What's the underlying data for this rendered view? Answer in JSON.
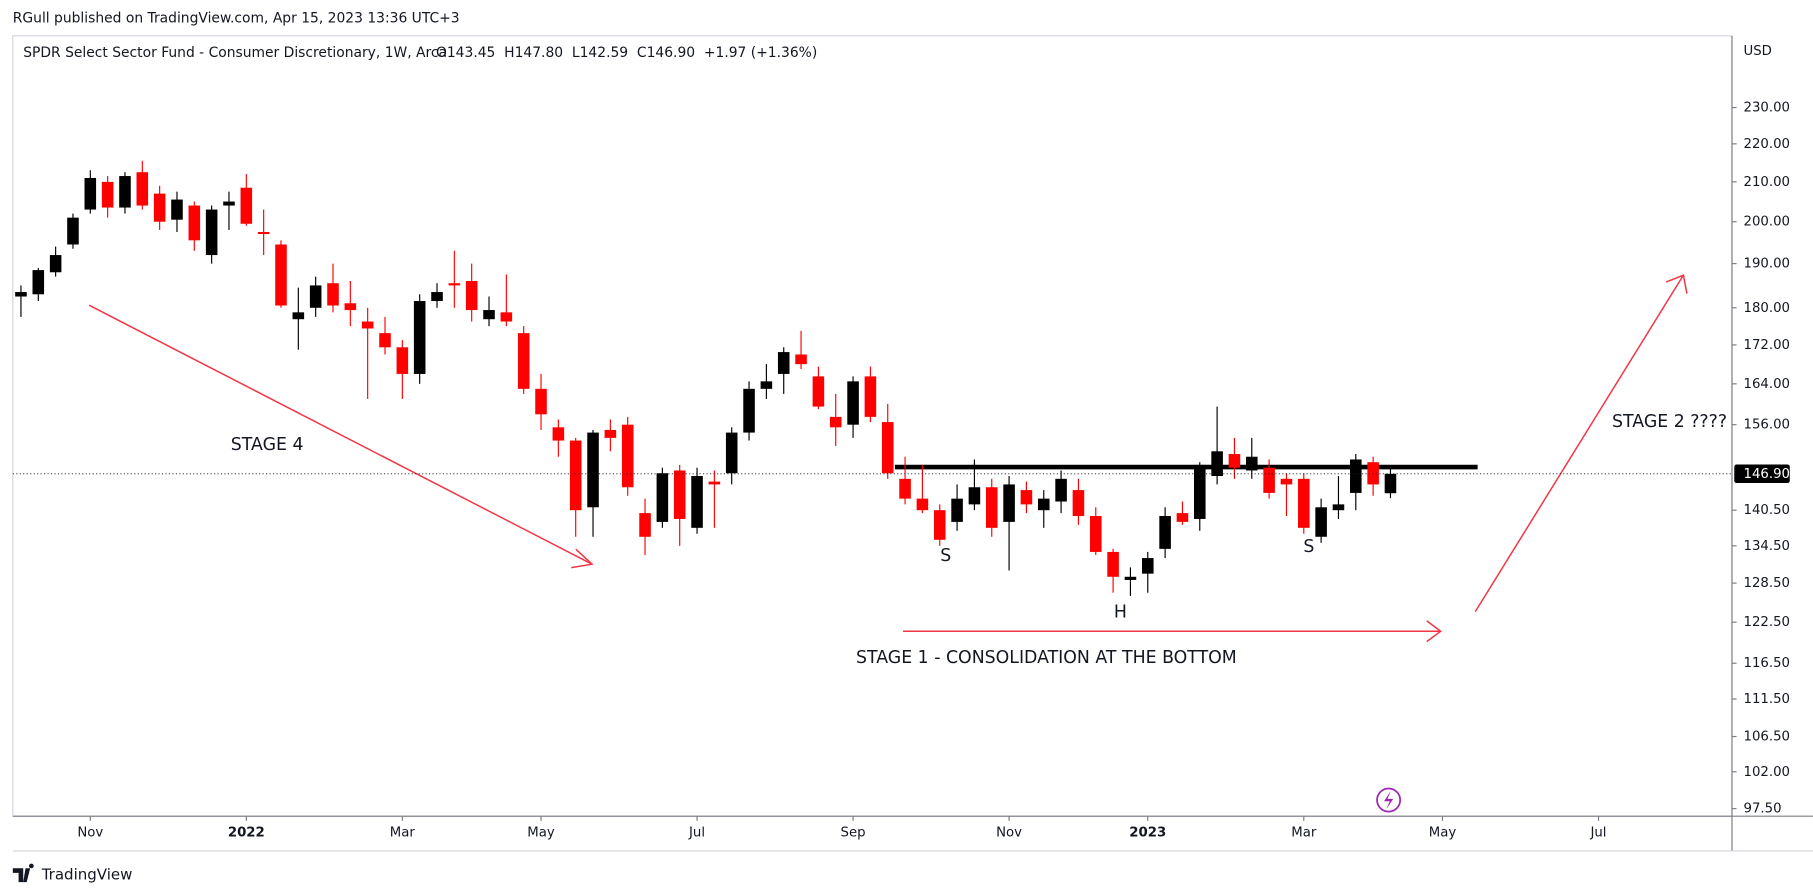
{
  "chart_data": {
    "type": "candlestick",
    "published": "RGull published on TradingView.com, Apr 15, 2023 13:36 UTC+3",
    "title": "SPDR Select Sector Fund - Consumer Discretionary, 1W, Arca",
    "ohlc_text": "O143.45  H147.80  L142.59  C146.90  +1.97 (+1.36%)",
    "currency": "USD",
    "brand": "TradingView",
    "annotations": [
      "STAGE 4",
      "STAGE 1 - CONSOLIDATION AT THE BOTTOM",
      "S",
      "H",
      "S",
      "STAGE 2 ????"
    ],
    "up_color": "#000000",
    "down_color": "#ff0000",
    "log_scale": true,
    "grid": false,
    "xlim": [
      -0.47,
      98.7
    ],
    "xticks": [
      {
        "value": 4,
        "label": "Nov"
      },
      {
        "value": 13,
        "label": "2022"
      },
      {
        "value": 22,
        "label": "Mar"
      },
      {
        "value": 30,
        "label": "May"
      },
      {
        "value": 39,
        "label": "Jul"
      },
      {
        "value": 48,
        "label": "Sep"
      },
      {
        "value": 57,
        "label": "Nov"
      },
      {
        "value": 65,
        "label": "2023"
      },
      {
        "value": 74,
        "label": "Mar"
      },
      {
        "value": 82,
        "label": "May"
      },
      {
        "value": 91,
        "label": "Jul"
      }
    ],
    "ylim": [
      96.6,
      251.1
    ],
    "yticks": [
      {
        "value": 97.5,
        "label": "97.50"
      },
      {
        "value": 102,
        "label": "102.00"
      },
      {
        "value": 106.5,
        "label": "106.50"
      },
      {
        "value": 111.5,
        "label": "111.50"
      },
      {
        "value": 116.5,
        "label": "116.50"
      },
      {
        "value": 122.5,
        "label": "122.50"
      },
      {
        "value": 128.5,
        "label": "128.50"
      },
      {
        "value": 134.5,
        "label": "134.50"
      },
      {
        "value": 140.5,
        "label": "140.50"
      },
      {
        "value": 156,
        "label": "156.00"
      },
      {
        "value": 164,
        "label": "164.00"
      },
      {
        "value": 172,
        "label": "172.00"
      },
      {
        "value": 180,
        "label": "180.00"
      },
      {
        "value": 190,
        "label": "190.00"
      },
      {
        "value": 200,
        "label": "200.00"
      },
      {
        "value": 210,
        "label": "210.00"
      },
      {
        "value": 220,
        "label": "220.00"
      },
      {
        "value": 230,
        "label": "230.00"
      }
    ],
    "last_price": {
      "value": 146.9,
      "label": "146.90"
    },
    "open": [
      182.5,
      183,
      188,
      194.5,
      203,
      210,
      203.5,
      212.5,
      207,
      200.5,
      204,
      192,
      204,
      208.5,
      197.5,
      194.5,
      177.5,
      180,
      185.5,
      181,
      177,
      174.5,
      171.5,
      166,
      181.5,
      185.5,
      186,
      177.5,
      179,
      174.5,
      163,
      155.5,
      153,
      141,
      155,
      156,
      140,
      138.5,
      147.5,
      137.5,
      145.5,
      147,
      154.5,
      163,
      166,
      170,
      165.5,
      157.5,
      156,
      165.5,
      156.5,
      146,
      142.5,
      140.5,
      138.5,
      141.5,
      144.5,
      138.5,
      144,
      140.5,
      142,
      144,
      139.5,
      133.5,
      129,
      130,
      134,
      140,
      139,
      146.5,
      150.5,
      147.5,
      148,
      146,
      146,
      136,
      140.5,
      143.5,
      149,
      143.45
    ],
    "high": [
      185,
      189,
      194,
      202,
      213,
      211.5,
      212.5,
      215.5,
      209,
      207.5,
      205,
      204,
      207.5,
      212,
      203,
      195.5,
      184.5,
      187,
      190,
      186,
      180,
      178,
      173,
      183,
      185.5,
      193,
      190,
      182.5,
      187.5,
      176,
      166,
      157,
      153.5,
      155,
      157,
      157.5,
      142.5,
      148,
      148.5,
      148,
      147.5,
      155.5,
      164.5,
      168,
      171.5,
      175,
      167.5,
      162,
      165.5,
      167.5,
      160,
      150,
      148.5,
      141.5,
      145,
      149.5,
      146,
      146.5,
      145.5,
      144,
      147.5,
      146,
      141,
      134,
      131,
      133.5,
      141,
      142,
      149,
      159.5,
      153.5,
      153.5,
      149.5,
      147,
      147,
      142.5,
      146.5,
      150.5,
      150,
      147.8
    ],
    "low": [
      178,
      181.5,
      187,
      193.5,
      202,
      201,
      202,
      203,
      198,
      197.5,
      193,
      190,
      198,
      199,
      192,
      180,
      171,
      178,
      179,
      176,
      161,
      170,
      161,
      164,
      180,
      180,
      177,
      176,
      176,
      162,
      155,
      150,
      136,
      136,
      151,
      143,
      133,
      137.5,
      134.5,
      136.5,
      137.5,
      145,
      153,
      161,
      162,
      167,
      159,
      152,
      153.5,
      156.5,
      146,
      141.5,
      140,
      134.5,
      137,
      140.5,
      136,
      130.5,
      140,
      137.5,
      140,
      138,
      133,
      127,
      126.5,
      127,
      132.5,
      138,
      137,
      145,
      146,
      146,
      142.5,
      139.5,
      136.5,
      135,
      139,
      140.5,
      143,
      142.59
    ],
    "close": [
      183.5,
      188.5,
      192,
      201,
      211,
      203.5,
      211.5,
      204,
      200,
      205.5,
      195.5,
      203,
      205,
      199.5,
      197,
      180.5,
      179,
      185,
      180.5,
      179.5,
      175.5,
      171.5,
      166,
      181.5,
      183.5,
      185,
      179.5,
      179.5,
      177,
      163,
      158,
      153,
      140.5,
      154.5,
      153.5,
      144.5,
      136,
      147,
      139,
      146.5,
      145,
      154.5,
      163,
      164.5,
      170.5,
      168,
      159.5,
      155.5,
      164.5,
      157.5,
      147,
      142.5,
      140.5,
      135.5,
      142.5,
      144.5,
      137.5,
      145,
      141.5,
      142.5,
      146,
      139.5,
      133.5,
      129.5,
      129.5,
      132.5,
      139.5,
      138.5,
      148.5,
      151,
      148,
      150,
      143.5,
      145,
      137.5,
      141,
      141.5,
      149.5,
      145,
      146.9
    ]
  }
}
